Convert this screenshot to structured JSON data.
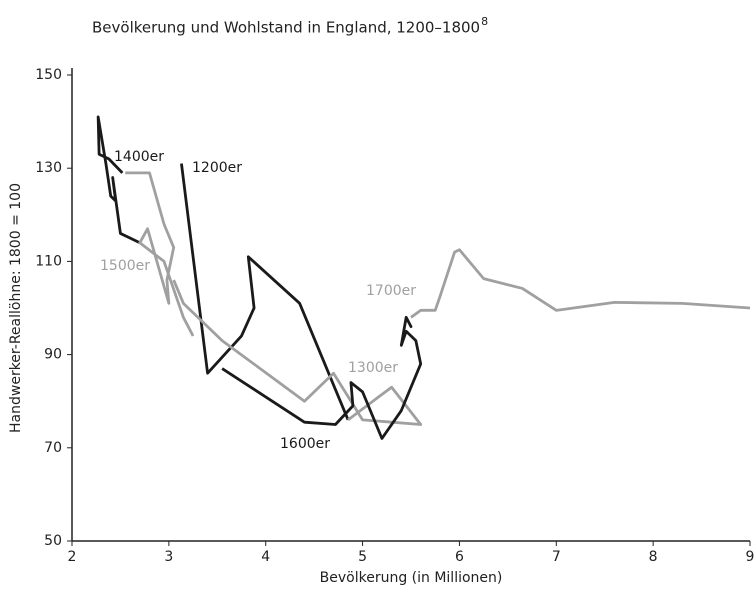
{
  "chart_data": {
    "type": "line",
    "title": "Bevölkerung und Wohlstand in England, 1200–1800",
    "title_footnote": "8",
    "x_label": "Bevölkerung (in Millionen)",
    "y_label": "Handwerker-Reallöhne: 1800 = 100",
    "xlim": [
      2,
      9
    ],
    "xticks": [
      2,
      3,
      4,
      5,
      6,
      7,
      8,
      9
    ],
    "ylim": [
      50,
      150
    ],
    "yticks": [
      50,
      70,
      90,
      110,
      130,
      150
    ],
    "series": [
      {
        "name": "1200er",
        "color": "#1a1a1a",
        "x": [
          3.13,
          3.4,
          3.75,
          3.88,
          3.82,
          4.35,
          4.85
        ],
        "values": [
          131,
          86,
          94,
          100,
          111,
          101,
          76
        ]
      },
      {
        "name": "1300er",
        "color": "#a0a0a0",
        "x": [
          4.85,
          5.3,
          5.6,
          5.0,
          4.7,
          4.4,
          3.55,
          3.15,
          3.05
        ],
        "values": [
          76,
          83,
          75,
          76,
          86,
          80,
          93,
          101,
          106
        ]
      },
      {
        "name": "1400er",
        "color": "#1a1a1a",
        "x": [
          2.52,
          2.38,
          2.28,
          2.27,
          2.35,
          2.4,
          2.45,
          2.42,
          2.5,
          2.7
        ],
        "values": [
          129,
          132,
          133,
          141,
          131,
          124,
          123,
          128,
          116,
          114
        ]
      },
      {
        "name": "1500er",
        "color": "#a0a0a0",
        "x": [
          2.55,
          2.8,
          2.95,
          3.05,
          2.98,
          3.0,
          2.78,
          2.7,
          2.95,
          3.15,
          3.25
        ],
        "values": [
          129,
          129,
          118,
          113,
          106,
          101,
          117,
          114,
          110,
          98,
          94
        ]
      },
      {
        "name": "1600er",
        "color": "#1a1a1a",
        "x": [
          3.55,
          4.4,
          4.72,
          4.9,
          4.88,
          5.0,
          5.2,
          5.4,
          5.6,
          5.55,
          5.45,
          5.4,
          5.45,
          5.5,
          5.45
        ],
        "values": [
          87,
          75.5,
          75,
          79,
          84,
          82,
          72,
          78,
          88,
          93,
          95,
          92,
          98,
          96,
          98
        ]
      },
      {
        "name": "1700er",
        "color": "#a0a0a0",
        "x": [
          5.5,
          5.6,
          5.75,
          5.8,
          5.95,
          6.0,
          6.25,
          6.65,
          7.0,
          7.6,
          8.3,
          9.0
        ],
        "values": [
          98,
          99.5,
          99.5,
          102.5,
          112,
          112.5,
          106.3,
          104.2,
          99.5,
          101.2,
          101,
          100
        ]
      }
    ]
  }
}
